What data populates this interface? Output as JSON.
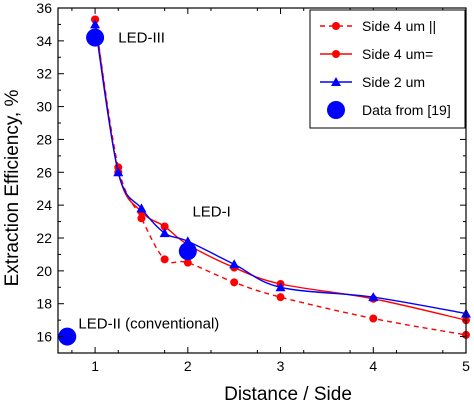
{
  "chart_data": {
    "type": "line",
    "title": "",
    "xlabel": "Distance / Side",
    "ylabel": "Extraction Efficiency, %",
    "xlim": [
      0.6,
      5.0
    ],
    "ylim": [
      15,
      36
    ],
    "x_ticks": [
      1,
      2,
      3,
      4,
      5
    ],
    "y_ticks": [
      16,
      18,
      20,
      22,
      24,
      26,
      28,
      30,
      32,
      34,
      36
    ],
    "grid": false,
    "legend_position": "top-right",
    "series": [
      {
        "name": "Side 4 um ||",
        "color": "#ff0000",
        "line_style": "dashed",
        "marker": "circle",
        "x": [
          1.0,
          1.25,
          1.5,
          1.75,
          2.0,
          2.5,
          3.0,
          4.0,
          5.0
        ],
        "y": [
          35.3,
          26.3,
          23.2,
          20.7,
          20.5,
          19.3,
          18.4,
          17.1,
          16.1
        ]
      },
      {
        "name": "Side 4 um=",
        "color": "#ff0000",
        "line_style": "solid",
        "marker": "circle",
        "x": [
          1.0,
          1.25,
          1.5,
          1.75,
          2.0,
          2.5,
          3.0,
          4.0,
          5.0
        ],
        "y": [
          35.3,
          26.0,
          23.6,
          22.7,
          21.6,
          20.2,
          19.2,
          18.3,
          17.0
        ]
      },
      {
        "name": "Side 2 um",
        "color": "#0000ff",
        "line_style": "solid",
        "marker": "triangle",
        "x": [
          1.0,
          1.25,
          1.5,
          1.75,
          2.0,
          2.5,
          3.0,
          4.0,
          5.0
        ],
        "y": [
          35.0,
          26.0,
          23.8,
          22.3,
          21.8,
          20.4,
          19.0,
          18.4,
          17.4
        ]
      },
      {
        "name": "Data from [19]",
        "color": "#0000ff",
        "line_style": "none",
        "marker": "big-circle",
        "x": [
          1.0,
          2.0,
          0.7
        ],
        "y": [
          34.2,
          21.2,
          16.0
        ]
      }
    ],
    "annotations": [
      {
        "text": "LED-III",
        "x": 1.25,
        "y": 34.2
      },
      {
        "text": "LED-I",
        "x": 2.05,
        "y": 23.6
      },
      {
        "text": "LED-II (conventional)",
        "x": 0.82,
        "y": 16.8
      }
    ]
  }
}
